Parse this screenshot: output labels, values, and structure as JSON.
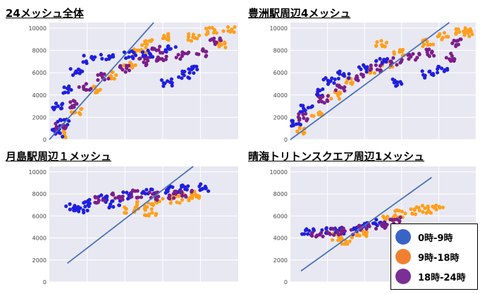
{
  "colors": {
    "plot_bg": "#e8e8f2",
    "grid": "#ffffff",
    "tick": "#444444",
    "line": "#4a72b8",
    "blue": "#1f1fe0",
    "orange": "#ff9f1a",
    "purple": "#7b1e8a"
  },
  "legend": {
    "items": [
      {
        "label": "0時-9時",
        "color": "#3a63c8"
      },
      {
        "label": "9時-18時",
        "color": "#f08030"
      },
      {
        "label": "18時-24時",
        "color": "#7a2f95"
      }
    ]
  },
  "chart_data": [
    {
      "type": "scatter",
      "title": "24メッシュ全体",
      "ylim": [
        0,
        10500
      ],
      "yticks": [
        0,
        2000,
        4000,
        6000,
        8000,
        10000
      ],
      "xlim": [
        0,
        10500
      ],
      "grid": true,
      "diagonal": [
        [
          0,
          0
        ],
        [
          5800,
          10500
        ]
      ],
      "clusters": [
        {
          "group": "blue",
          "pts": [
            [
              400,
              600
            ],
            [
              800,
              1500
            ],
            [
              500,
              3000
            ],
            [
              1000,
              4500
            ],
            [
              1500,
              6000
            ],
            [
              2200,
              7200
            ],
            [
              3200,
              7500
            ],
            [
              4500,
              7600
            ],
            [
              5500,
              7700
            ],
            [
              6800,
              8200
            ],
            [
              7500,
              5800
            ],
            [
              8000,
              6300
            ],
            [
              6500,
              5100
            ]
          ]
        },
        {
          "group": "orange",
          "pts": [
            [
              700,
              400
            ],
            [
              1500,
              2500
            ],
            [
              2500,
              4500
            ],
            [
              3500,
              5800
            ],
            [
              4500,
              6600
            ],
            [
              5000,
              7800
            ],
            [
              5500,
              8600
            ],
            [
              6500,
              9200
            ],
            [
              8000,
              9200
            ],
            [
              9000,
              9700
            ],
            [
              9600,
              8600
            ],
            [
              10000,
              9800
            ]
          ]
        },
        {
          "group": "purple",
          "pts": [
            [
              600,
              1200
            ],
            [
              1200,
              3200
            ],
            [
              2000,
              4800
            ],
            [
              3000,
              5600
            ],
            [
              4200,
              6400
            ],
            [
              5200,
              7000
            ],
            [
              6200,
              7300
            ],
            [
              7400,
              7500
            ],
            [
              8400,
              7800
            ],
            [
              9200,
              8800
            ],
            [
              6000,
              8100
            ]
          ]
        }
      ]
    },
    {
      "type": "scatter",
      "title": "豊洲駅周辺4メッシュ",
      "ylim": [
        0,
        10500
      ],
      "yticks": [
        0,
        2000,
        4000,
        6000,
        8000,
        10000
      ],
      "xlim": [
        0,
        10500
      ],
      "grid": true,
      "diagonal": [
        [
          0,
          0
        ],
        [
          9000,
          10500
        ]
      ],
      "clusters": [
        {
          "group": "blue",
          "pts": [
            [
              400,
              1500
            ],
            [
              900,
              2800
            ],
            [
              1500,
              4200
            ],
            [
              2200,
              5200
            ],
            [
              3000,
              5800
            ],
            [
              4200,
              6400
            ],
            [
              5200,
              7000
            ],
            [
              6000,
              5100
            ],
            [
              7800,
              5900
            ],
            [
              8600,
              6300
            ]
          ]
        },
        {
          "group": "orange",
          "pts": [
            [
              500,
              800
            ],
            [
              1500,
              2400
            ],
            [
              2500,
              4000
            ],
            [
              3500,
              5300
            ],
            [
              4500,
              6200
            ],
            [
              5500,
              6800
            ],
            [
              6200,
              7800
            ],
            [
              5200,
              8700
            ],
            [
              7800,
              8700
            ],
            [
              8600,
              9300
            ],
            [
              9600,
              9800
            ],
            [
              10000,
              9600
            ]
          ]
        },
        {
          "group": "purple",
          "pts": [
            [
              800,
              2000
            ],
            [
              1800,
              3600
            ],
            [
              2800,
              4700
            ],
            [
              3800,
              5600
            ],
            [
              4800,
              6400
            ],
            [
              6000,
              7000
            ],
            [
              7000,
              7500
            ],
            [
              8000,
              7800
            ],
            [
              9000,
              7400
            ],
            [
              9400,
              8700
            ]
          ]
        }
      ]
    },
    {
      "type": "scatter",
      "title": "月島駅周辺１メッシュ",
      "ylim": [
        0,
        10500
      ],
      "yticks": [
        0,
        2000,
        4000,
        6000,
        8000,
        10000
      ],
      "xlim": [
        0,
        10500
      ],
      "grid": true,
      "diagonal": [
        [
          1000,
          1700
        ],
        [
          8000,
          10500
        ]
      ],
      "clusters": [
        {
          "group": "blue",
          "pts": [
            [
              1200,
              6800
            ],
            [
              2000,
              7200
            ],
            [
              3000,
              7600
            ],
            [
              4200,
              7900
            ],
            [
              5500,
              8200
            ],
            [
              6500,
              8400
            ],
            [
              7500,
              8500
            ],
            [
              8500,
              8600
            ],
            [
              1800,
              6600
            ],
            [
              3600,
              7100
            ]
          ]
        },
        {
          "group": "orange",
          "pts": [
            [
              4500,
              6600
            ],
            [
              5200,
              7000
            ],
            [
              6000,
              7300
            ],
            [
              7000,
              7500
            ],
            [
              7600,
              7700
            ],
            [
              8200,
              7900
            ],
            [
              5600,
              6300
            ]
          ]
        },
        {
          "group": "purple",
          "pts": [
            [
              2800,
              7500
            ],
            [
              3800,
              7800
            ],
            [
              4800,
              8000
            ],
            [
              5800,
              7800
            ],
            [
              6800,
              7900
            ],
            [
              7600,
              8000
            ]
          ]
        }
      ]
    },
    {
      "type": "scatter",
      "title": "晴海トリトンスクエア周辺1メッシュ",
      "ylim": [
        0,
        10500
      ],
      "yticks": [
        0,
        2000,
        4000,
        6000,
        8000,
        10000
      ],
      "xlim": [
        0,
        10500
      ],
      "grid": true,
      "diagonal": [
        [
          600,
          1000
        ],
        [
          8000,
          9500
        ]
      ],
      "clusters": [
        {
          "group": "blue",
          "pts": [
            [
              1000,
              4500
            ],
            [
              2000,
              4600
            ],
            [
              2800,
              4700
            ],
            [
              3800,
              4900
            ],
            [
              4500,
              5100
            ],
            [
              5200,
              5400
            ]
          ]
        },
        {
          "group": "orange",
          "pts": [
            [
              2600,
              4100
            ],
            [
              3200,
              3800
            ],
            [
              4000,
              4300
            ],
            [
              5500,
              5800
            ],
            [
              6200,
              6200
            ],
            [
              7000,
              6500
            ],
            [
              7800,
              6600
            ],
            [
              8400,
              6800
            ]
          ]
        },
        {
          "group": "purple",
          "pts": [
            [
              1500,
              4300
            ],
            [
              2400,
              4500
            ],
            [
              3200,
              4600
            ],
            [
              4200,
              4900
            ],
            [
              5200,
              5100
            ],
            [
              6000,
              5600
            ]
          ]
        }
      ]
    }
  ]
}
